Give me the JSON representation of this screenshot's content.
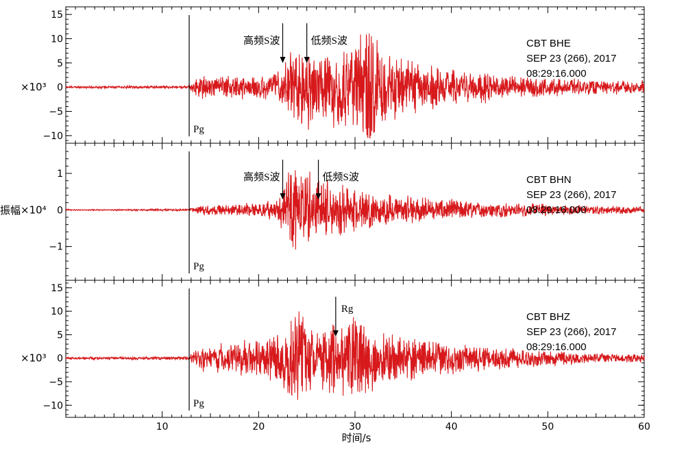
{
  "chart_data": {
    "type": "line",
    "xlabel": "时间/s",
    "ylabel": "振幅",
    "xlim": [
      0,
      60
    ],
    "xticks": [
      10,
      20,
      30,
      40,
      50,
      60
    ],
    "grid": false,
    "panels": [
      {
        "station": "CBT",
        "channel": "BHE",
        "date_line": "SEP 23 (266), 2017",
        "time_line": "08:29:16.000",
        "scale_label": "×10³",
        "ylim": [
          -11,
          16
        ],
        "yticks": [
          -10,
          -5,
          0,
          5,
          10,
          15
        ],
        "ytick_labels": [
          "−10",
          "−5",
          "0",
          "5",
          "10",
          "15"
        ],
        "annotations": [
          {
            "text": "Pg",
            "x": 12.8,
            "kind": "phase-line"
          },
          {
            "text": "高频S波",
            "x": 22.5,
            "kind": "arrow"
          },
          {
            "text": "低频S波",
            "x": 25.0,
            "kind": "arrow"
          }
        ],
        "series": [
          {
            "x": [
              0,
              5,
              10,
              12.8,
              13.5,
              15,
              18,
              20,
              22,
              23,
              24,
              25,
              26,
              27,
              28,
              29,
              30,
              31,
              31.5,
              32,
              33,
              35,
              38,
              40,
              45,
              50,
              55,
              60
            ],
            "envelope": [
              0.2,
              0.3,
              0.3,
              0.3,
              2.5,
              2.5,
              2.5,
              2.5,
              3.5,
              6,
              9,
              9,
              8,
              8,
              8,
              9,
              10,
              15,
              14,
              12,
              8,
              6,
              5,
              4,
              3,
              2,
              1.5,
              1.5
            ]
          }
        ]
      },
      {
        "station": "CBT",
        "channel": "BHN",
        "date_line": "SEP 23 (266), 2017",
        "time_line": "08:29:16.000",
        "scale_label": "×10⁴",
        "ylim": [
          -1.85,
          1.75
        ],
        "yticks": [
          -1,
          0,
          1
        ],
        "ytick_labels": [
          "−1",
          "0",
          "1"
        ],
        "annotations": [
          {
            "text": "Pg",
            "x": 12.8,
            "kind": "phase-line"
          },
          {
            "text": "高频S波",
            "x": 22.5,
            "kind": "arrow"
          },
          {
            "text": "低频S波",
            "x": 26.2,
            "kind": "arrow"
          }
        ],
        "series": [
          {
            "x": [
              0,
              5,
              10,
              12.8,
              13.5,
              15,
              18,
              20,
              22,
              23,
              23.5,
              24,
              25,
              26,
              27,
              28,
              29,
              30,
              31,
              32,
              35,
              38,
              40,
              45,
              50,
              55,
              60
            ],
            "envelope": [
              0.02,
              0.02,
              0.03,
              0.03,
              0.12,
              0.15,
              0.18,
              0.2,
              0.3,
              0.9,
              1.7,
              1.6,
              1.1,
              0.9,
              0.9,
              0.8,
              0.9,
              0.8,
              0.7,
              0.5,
              0.4,
              0.35,
              0.3,
              0.22,
              0.18,
              0.12,
              0.1
            ]
          }
        ]
      },
      {
        "station": "CBT",
        "channel": "BHZ",
        "date_line": "SEP 23 (266), 2017",
        "time_line": "08:29:16.000",
        "scale_label": "×10³",
        "ylim": [
          -12,
          16
        ],
        "yticks": [
          -10,
          -5,
          0,
          5,
          10,
          15
        ],
        "ytick_labels": [
          "−10",
          "−5",
          "0",
          "5",
          "10",
          "15"
        ],
        "annotations": [
          {
            "text": "Pg",
            "x": 12.8,
            "kind": "phase-line"
          },
          {
            "text": "Rg",
            "x": 28.0,
            "kind": "arrow"
          }
        ],
        "series": [
          {
            "x": [
              0,
              5,
              10,
              12.8,
              13.5,
              15,
              18,
              20,
              22,
              23,
              23.5,
              24,
              25,
              26,
              27,
              28,
              29,
              30,
              31,
              32,
              35,
              38,
              40,
              45,
              50,
              55,
              60
            ],
            "envelope": [
              0.3,
              0.3,
              0.4,
              0.4,
              3,
              3,
              3.5,
              4,
              6,
              8,
              12,
              12,
              9,
              7,
              9,
              9,
              8,
              10,
              9,
              7,
              5,
              4,
              3.5,
              2.5,
              1.8,
              1.2,
              1.0
            ]
          }
        ]
      }
    ]
  },
  "colors": {
    "trace": "#d7191c",
    "axis": "#000000",
    "background": "#ffffff"
  }
}
